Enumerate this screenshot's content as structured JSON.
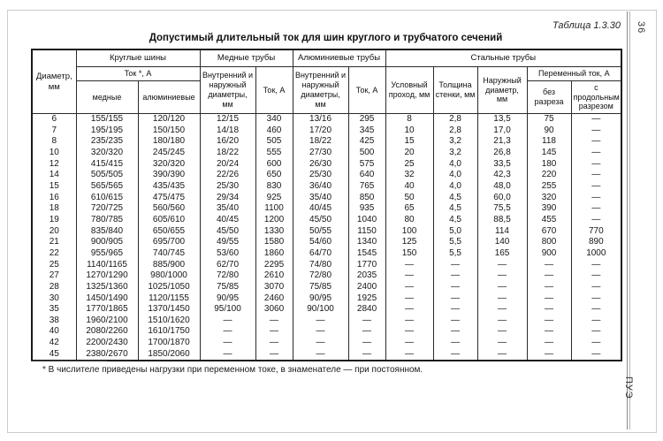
{
  "page": {
    "table_label": "Таблица 1.3.30",
    "page_number": "36",
    "footer_vertical": "ПУЭ",
    "title": "Допустимый длительный ток для шин круглого и трубчатого сечений",
    "footnote": "* В числителе приведены нагрузки при переменном токе, в знаменателе — при постоянном."
  },
  "table": {
    "headers": {
      "diameter": "Диаметр, мм",
      "round_bars": "Круглые шины",
      "round_bars_current": "Ток *, А",
      "copper": "медные",
      "aluminum": "алюминиевые",
      "copper_tubes": "Медные трубы",
      "aluminum_tubes": "Алюминиевые трубы",
      "inner_outer_diam": "Внутренний и наружный диаметры, мм",
      "current": "Ток, А",
      "steel_tubes": "Стальные трубы",
      "nominal_bore": "Условный проход, мм",
      "wall_thickness": "Толщина стенки, мм",
      "outer_diameter": "Наружный диаметр, мм",
      "ac_current": "Переменный ток, А",
      "no_slit": "без разреза",
      "with_slit": "с продольным разрезом"
    },
    "rows": [
      [
        "6",
        "155/155",
        "120/120",
        "12/15",
        "340",
        "13/16",
        "295",
        "8",
        "2,8",
        "13,5",
        "75",
        "—"
      ],
      [
        "7",
        "195/195",
        "150/150",
        "14/18",
        "460",
        "17/20",
        "345",
        "10",
        "2,8",
        "17,0",
        "90",
        "—"
      ],
      [
        "8",
        "235/235",
        "180/180",
        "16/20",
        "505",
        "18/22",
        "425",
        "15",
        "3,2",
        "21,3",
        "118",
        "—"
      ],
      [
        "10",
        "320/320",
        "245/245",
        "18/22",
        "555",
        "27/30",
        "500",
        "20",
        "3,2",
        "26,8",
        "145",
        "—"
      ],
      [
        "12",
        "415/415",
        "320/320",
        "20/24",
        "600",
        "26/30",
        "575",
        "25",
        "4,0",
        "33,5",
        "180",
        "—"
      ],
      [
        "14",
        "505/505",
        "390/390",
        "22/26",
        "650",
        "25/30",
        "640",
        "32",
        "4,0",
        "42,3",
        "220",
        "—"
      ],
      [
        "15",
        "565/565",
        "435/435",
        "25/30",
        "830",
        "36/40",
        "765",
        "40",
        "4,0",
        "48,0",
        "255",
        "—"
      ],
      [
        "16",
        "610/615",
        "475/475",
        "29/34",
        "925",
        "35/40",
        "850",
        "50",
        "4,5",
        "60,0",
        "320",
        "—"
      ],
      [
        "18",
        "720/725",
        "560/560",
        "35/40",
        "1100",
        "40/45",
        "935",
        "65",
        "4,5",
        "75,5",
        "390",
        "—"
      ],
      [
        "19",
        "780/785",
        "605/610",
        "40/45",
        "1200",
        "45/50",
        "1040",
        "80",
        "4,5",
        "88,5",
        "455",
        "—"
      ],
      [
        "20",
        "835/840",
        "650/655",
        "45/50",
        "1330",
        "50/55",
        "1150",
        "100",
        "5,0",
        "114",
        "670",
        "770"
      ],
      [
        "21",
        "900/905",
        "695/700",
        "49/55",
        "1580",
        "54/60",
        "1340",
        "125",
        "5,5",
        "140",
        "800",
        "890"
      ],
      [
        "22",
        "955/965",
        "740/745",
        "53/60",
        "1860",
        "64/70",
        "1545",
        "150",
        "5,5",
        "165",
        "900",
        "1000"
      ],
      [
        "25",
        "1140/1165",
        "885/900",
        "62/70",
        "2295",
        "74/80",
        "1770",
        "—",
        "—",
        "—",
        "—",
        "—"
      ],
      [
        "27",
        "1270/1290",
        "980/1000",
        "72/80",
        "2610",
        "72/80",
        "2035",
        "—",
        "—",
        "—",
        "—",
        "—"
      ],
      [
        "28",
        "1325/1360",
        "1025/1050",
        "75/85",
        "3070",
        "75/85",
        "2400",
        "—",
        "—",
        "—",
        "—",
        "—"
      ],
      [
        "30",
        "1450/1490",
        "1120/1155",
        "90/95",
        "2460",
        "90/95",
        "1925",
        "—",
        "—",
        "—",
        "—",
        "—"
      ],
      [
        "35",
        "1770/1865",
        "1370/1450",
        "95/100",
        "3060",
        "90/100",
        "2840",
        "—",
        "—",
        "—",
        "—",
        "—"
      ],
      [
        "38",
        "1960/2100",
        "1510/1620",
        "—",
        "—",
        "—",
        "—",
        "—",
        "—",
        "—",
        "—",
        "—"
      ],
      [
        "40",
        "2080/2260",
        "1610/1750",
        "—",
        "—",
        "—",
        "—",
        "—",
        "—",
        "—",
        "—",
        "—"
      ],
      [
        "42",
        "2200/2430",
        "1700/1870",
        "—",
        "—",
        "—",
        "—",
        "—",
        "—",
        "—",
        "—",
        "—"
      ],
      [
        "45",
        "2380/2670",
        "1850/2060",
        "—",
        "—",
        "—",
        "—",
        "—",
        "—",
        "—",
        "—",
        "—"
      ]
    ]
  }
}
